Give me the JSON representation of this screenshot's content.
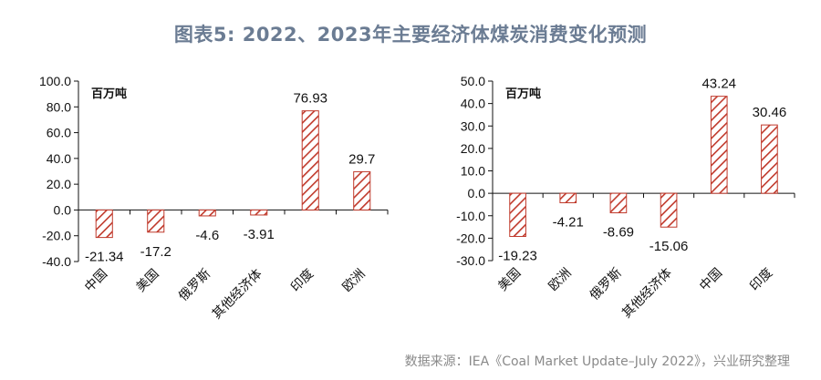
{
  "title": "图表5: 2022、2023年主要经济体煤炭消费变化预测",
  "source": "数据来源：IEA《Coal Market Update–July 2022》，兴业研究整理",
  "colors": {
    "bar": "#c0392b",
    "title": "#6b7c93"
  },
  "chart_data": [
    {
      "type": "bar",
      "unit_label": "百万吨",
      "categories": [
        "中国",
        "美国",
        "俄罗斯",
        "其他经济体",
        "印度",
        "欧洲"
      ],
      "values": [
        -21.34,
        -17.2,
        -4.6,
        -3.91,
        76.93,
        29.7
      ],
      "value_labels": [
        "-21.34",
        "-17.2",
        "-4.6",
        "-3.91",
        "76.93",
        "29.7"
      ],
      "ylim": [
        -40,
        100
      ],
      "yticks": [
        "100.0",
        "80.0",
        "60.0",
        "40.0",
        "20.0",
        "0.0",
        "-20.0",
        "-40.0"
      ],
      "ytick_values": [
        100,
        80,
        60,
        40,
        20,
        0,
        -20,
        -40
      ],
      "grid": false
    },
    {
      "type": "bar",
      "unit_label": "百万吨",
      "categories": [
        "美国",
        "欧洲",
        "俄罗斯",
        "其他经济体",
        "中国",
        "印度"
      ],
      "values": [
        -19.23,
        -4.21,
        -8.69,
        -15.06,
        43.24,
        30.46
      ],
      "value_labels": [
        "-19.23",
        "-4.21",
        "-8.69",
        "-15.06",
        "43.24",
        "30.46"
      ],
      "ylim": [
        -30,
        50
      ],
      "yticks": [
        "50.0",
        "40.0",
        "30.0",
        "20.0",
        "10.0",
        "0.0",
        "-10.0",
        "-20.0",
        "-30.0"
      ],
      "ytick_values": [
        50,
        40,
        30,
        20,
        10,
        0,
        -10,
        -20,
        -30
      ],
      "grid": false
    }
  ]
}
